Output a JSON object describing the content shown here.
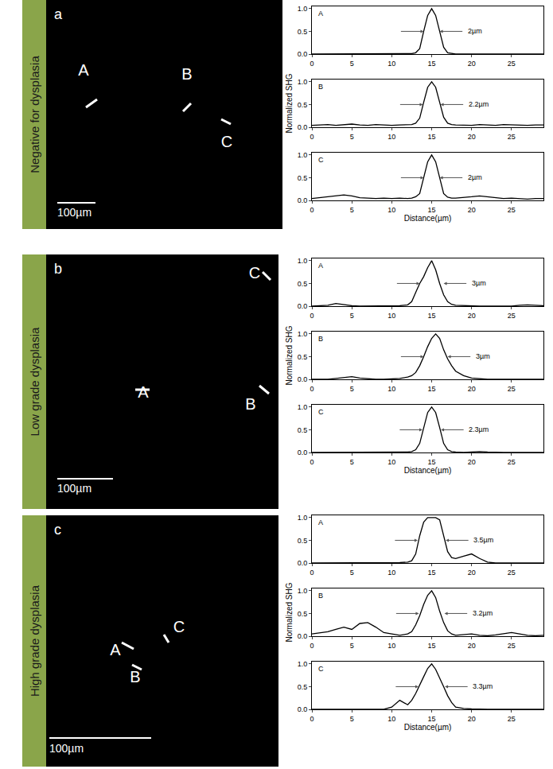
{
  "panels": [
    {
      "letter": "a",
      "label": "Negative for dysplasia",
      "scale_bar": "100µm",
      "markers": [
        "A",
        "B",
        "C"
      ]
    },
    {
      "letter": "b",
      "label": "Low grade dysplasia",
      "scale_bar": "100µm",
      "markers": [
        "A",
        "B",
        "C"
      ]
    },
    {
      "letter": "c",
      "label": "High grade dysplasia",
      "scale_bar": "100µm",
      "markers": [
        "A",
        "B",
        "C"
      ]
    }
  ],
  "chart_data": [
    {
      "type": "line",
      "title": "A",
      "color": "#000000",
      "x": [
        0,
        1,
        2,
        3,
        4,
        5,
        6,
        7,
        8,
        9,
        10,
        11,
        12,
        12.5,
        13,
        13.5,
        14,
        14.5,
        15,
        15.5,
        16,
        16.5,
        17,
        17.5,
        18,
        19,
        20,
        21,
        22,
        23,
        24,
        25,
        26,
        27,
        28,
        29
      ],
      "values": [
        0,
        0,
        0,
        0,
        0,
        0,
        0,
        0,
        0,
        0,
        0,
        0,
        0,
        0.01,
        0.03,
        0.12,
        0.5,
        0.85,
        1,
        0.85,
        0.5,
        0.15,
        0.03,
        0.01,
        0,
        0,
        0,
        0,
        0,
        0,
        0,
        0,
        0,
        0,
        0,
        0
      ],
      "xlim": [
        0,
        29
      ],
      "xticks": [
        0,
        5,
        10,
        15,
        20,
        25
      ],
      "ylim": [
        0,
        1.05
      ],
      "yticks": [
        {
          "value": 0,
          "label": "0.0"
        },
        {
          "value": 0.5,
          "label": "0.5"
        },
        {
          "value": 1,
          "label": "1.0"
        }
      ],
      "annotation": {
        "text": "2µm",
        "arrows": [
          14,
          16
        ],
        "y": 0.5
      }
    },
    {
      "type": "line",
      "title": "B",
      "color": "#000000",
      "y_label": "Normalized SHG",
      "x": [
        0,
        1,
        2,
        3,
        4,
        5,
        6,
        7,
        8,
        9,
        10,
        11,
        12,
        12.5,
        13,
        13.5,
        14,
        14.5,
        15,
        15.5,
        16,
        16.5,
        17,
        17.5,
        18,
        19,
        20,
        21,
        22,
        23,
        24,
        25,
        26,
        27,
        28,
        29
      ],
      "values": [
        0.04,
        0.05,
        0.06,
        0.04,
        0.05,
        0.07,
        0.05,
        0.04,
        0.06,
        0.05,
        0.04,
        0.05,
        0.05,
        0.06,
        0.09,
        0.2,
        0.55,
        0.88,
        1,
        0.88,
        0.55,
        0.22,
        0.09,
        0.06,
        0.05,
        0.05,
        0.04,
        0.06,
        0.05,
        0.04,
        0.06,
        0.05,
        0.05,
        0.04,
        0.05,
        0.05
      ],
      "xlim": [
        0,
        29
      ],
      "xticks": [
        0,
        5,
        10,
        15,
        20,
        25
      ],
      "ylim": [
        0,
        1.05
      ],
      "yticks": [
        {
          "value": 0,
          "label": "0.0"
        },
        {
          "value": 0.5,
          "label": "0.5"
        },
        {
          "value": 1,
          "label": "1.0"
        }
      ],
      "annotation": {
        "text": "2.2µm",
        "arrows": [
          13.9,
          16.1
        ],
        "y": 0.5
      }
    },
    {
      "type": "line",
      "title": "C",
      "color": "#000000",
      "x_label": "Distance(µm)",
      "x": [
        0,
        1,
        2,
        3,
        4,
        5,
        6,
        7,
        8,
        9,
        10,
        11,
        12,
        12.5,
        13,
        13.5,
        14,
        14.5,
        15,
        15.5,
        16,
        16.5,
        17,
        17.5,
        18,
        19,
        20,
        21,
        22,
        23,
        24,
        25,
        26,
        27,
        28,
        29
      ],
      "values": [
        0.04,
        0.06,
        0.08,
        0.1,
        0.12,
        0.1,
        0.06,
        0.05,
        0.04,
        0.05,
        0.04,
        0.05,
        0.04,
        0.05,
        0.08,
        0.15,
        0.5,
        0.85,
        1,
        0.85,
        0.5,
        0.15,
        0.07,
        0.05,
        0.05,
        0.06,
        0.08,
        0.1,
        0.08,
        0.05,
        0.04,
        0.05,
        0.04,
        0.03,
        0.04,
        0.04
      ],
      "xlim": [
        0,
        29
      ],
      "xticks": [
        0,
        5,
        10,
        15,
        20,
        25
      ],
      "ylim": [
        0,
        1.05
      ],
      "yticks": [
        {
          "value": 0,
          "label": "0.0"
        },
        {
          "value": 0.5,
          "label": "0.5"
        },
        {
          "value": 1,
          "label": "1.0"
        }
      ],
      "annotation": {
        "text": "2µm",
        "arrows": [
          14,
          16
        ],
        "y": 0.5
      }
    },
    {
      "type": "line",
      "title": "A",
      "color": "#000000",
      "x": [
        0,
        1,
        2,
        3,
        4,
        5,
        6,
        7,
        8,
        9,
        10,
        11,
        12,
        12.5,
        13,
        13.5,
        14,
        14.5,
        15,
        15.5,
        16,
        16.5,
        17,
        17.5,
        18,
        19,
        20,
        21,
        22,
        23,
        24,
        25,
        26,
        27,
        28,
        29
      ],
      "values": [
        0,
        0.01,
        0.02,
        0.06,
        0.03,
        0.01,
        0,
        0,
        0,
        0,
        0,
        0.01,
        0.03,
        0.1,
        0.3,
        0.5,
        0.65,
        0.85,
        1,
        0.8,
        0.5,
        0.25,
        0.1,
        0.04,
        0.02,
        0.01,
        0,
        0,
        0,
        0,
        0,
        0,
        0.02,
        0.03,
        0.02,
        0.01
      ],
      "xlim": [
        0,
        29
      ],
      "xticks": [
        0,
        5,
        10,
        15,
        20,
        25
      ],
      "ylim": [
        0,
        1.05
      ],
      "yticks": [
        {
          "value": 0,
          "label": "0.0"
        },
        {
          "value": 0.5,
          "label": "0.5"
        },
        {
          "value": 1,
          "label": "1.0"
        }
      ],
      "annotation": {
        "text": "3µm",
        "arrows": [
          13.5,
          16.5
        ],
        "y": 0.5
      }
    },
    {
      "type": "line",
      "title": "B",
      "color": "#000000",
      "y_label": "Normalized SHG",
      "x": [
        0,
        1,
        2,
        3,
        4,
        5,
        6,
        7,
        8,
        9,
        10,
        11,
        12,
        12.5,
        13,
        13.5,
        14,
        14.5,
        15,
        15.5,
        16,
        16.5,
        17,
        17.5,
        18,
        19,
        20,
        21,
        22,
        23,
        24,
        25,
        26,
        27,
        28,
        29
      ],
      "values": [
        0,
        0,
        0,
        0.02,
        0.04,
        0.06,
        0.03,
        0.01,
        0,
        0,
        0.01,
        0.02,
        0.05,
        0.08,
        0.15,
        0.3,
        0.5,
        0.72,
        0.9,
        1,
        0.9,
        0.65,
        0.45,
        0.3,
        0.18,
        0.08,
        0.03,
        0.01,
        0,
        0,
        0,
        0,
        0.01,
        0,
        0,
        0
      ],
      "xlim": [
        0,
        29
      ],
      "xticks": [
        0,
        5,
        10,
        15,
        20,
        25
      ],
      "ylim": [
        0,
        1.05
      ],
      "yticks": [
        {
          "value": 0,
          "label": "0.0"
        },
        {
          "value": 0.5,
          "label": "0.5"
        },
        {
          "value": 1,
          "label": "1.0"
        }
      ],
      "annotation": {
        "text": "3µm",
        "arrows": [
          14,
          17
        ],
        "y": 0.5
      }
    },
    {
      "type": "line",
      "title": "C",
      "color": "#000000",
      "x_label": "Distance(µm)",
      "x": [
        0,
        1,
        2,
        3,
        4,
        5,
        6,
        7,
        8,
        9,
        10,
        11,
        12,
        12.5,
        13,
        13.5,
        14,
        14.5,
        15,
        15.5,
        16,
        16.5,
        17,
        17.5,
        18,
        19,
        20,
        21,
        22,
        23,
        24,
        25,
        26,
        27,
        28,
        29
      ],
      "values": [
        0,
        0,
        0,
        0,
        0.01,
        0,
        0,
        0,
        0,
        0,
        0,
        0,
        0.01,
        0.02,
        0.06,
        0.2,
        0.55,
        0.88,
        1,
        0.88,
        0.55,
        0.2,
        0.06,
        0.02,
        0.01,
        0,
        0.01,
        0.02,
        0.01,
        0,
        0,
        0,
        0,
        0,
        0,
        0
      ],
      "xlim": [
        0,
        29
      ],
      "xticks": [
        0,
        5,
        10,
        15,
        20,
        25
      ],
      "ylim": [
        0,
        1.05
      ],
      "yticks": [
        {
          "value": 0,
          "label": "0.0"
        },
        {
          "value": 0.5,
          "label": "0.5"
        },
        {
          "value": 1,
          "label": "1.0"
        }
      ],
      "annotation": {
        "text": "2.3µm",
        "arrows": [
          13.85,
          16.15
        ],
        "y": 0.5
      }
    },
    {
      "type": "line",
      "title": "A",
      "color": "#000000",
      "x": [
        0,
        1,
        2,
        3,
        4,
        5,
        6,
        7,
        8,
        9,
        10,
        11,
        12,
        12.5,
        13,
        13.5,
        14,
        14.5,
        15,
        15.5,
        16,
        16.5,
        17,
        17.5,
        18,
        19,
        20,
        21,
        22,
        23,
        24,
        25,
        26,
        27,
        28,
        29
      ],
      "values": [
        0,
        0,
        0,
        0,
        0,
        0,
        0,
        0,
        0,
        0,
        0,
        0.01,
        0.02,
        0.05,
        0.2,
        0.6,
        0.9,
        1,
        1,
        1,
        0.95,
        0.6,
        0.25,
        0.12,
        0.1,
        0.15,
        0.2,
        0.1,
        0.02,
        0,
        0,
        0,
        0,
        0,
        0,
        0
      ],
      "xlim": [
        0,
        29
      ],
      "xticks": [
        0,
        5,
        10,
        15,
        20,
        25
      ],
      "ylim": [
        0,
        1.05
      ],
      "yticks": [
        {
          "value": 0,
          "label": "0.0"
        },
        {
          "value": 0.5,
          "label": "0.5"
        },
        {
          "value": 1,
          "label": "1.0"
        }
      ],
      "annotation": {
        "text": "3.5µm",
        "arrows": [
          13.25,
          16.75
        ],
        "y": 0.5
      }
    },
    {
      "type": "line",
      "title": "B",
      "color": "#000000",
      "y_label": "Normalized SHG",
      "x": [
        0,
        1,
        2,
        3,
        4,
        5,
        6,
        7,
        8,
        9,
        10,
        11,
        12,
        12.5,
        13,
        13.5,
        14,
        14.5,
        15,
        15.5,
        16,
        16.5,
        17,
        17.5,
        18,
        19,
        20,
        21,
        22,
        23,
        24,
        25,
        26,
        27,
        28,
        29
      ],
      "values": [
        0.05,
        0.07,
        0.1,
        0.15,
        0.2,
        0.15,
        0.28,
        0.3,
        0.2,
        0.08,
        0.05,
        0.02,
        0.05,
        0.1,
        0.25,
        0.45,
        0.7,
        0.9,
        1,
        0.85,
        0.55,
        0.3,
        0.12,
        0.05,
        0.02,
        0.03,
        0.05,
        0.02,
        0.01,
        0.03,
        0.05,
        0.08,
        0.05,
        0.02,
        0.01,
        0.02
      ],
      "xlim": [
        0,
        29
      ],
      "xticks": [
        0,
        5,
        10,
        15,
        20,
        25
      ],
      "ylim": [
        0,
        1.05
      ],
      "yticks": [
        {
          "value": 0,
          "label": "0.0"
        },
        {
          "value": 0.5,
          "label": "0.5"
        },
        {
          "value": 1,
          "label": "1.0"
        }
      ],
      "annotation": {
        "text": "3.2µm",
        "arrows": [
          13.4,
          16.6
        ],
        "y": 0.5
      }
    },
    {
      "type": "line",
      "title": "C",
      "color": "#000000",
      "x_label": "Distance(µm)",
      "x": [
        0,
        1,
        2,
        3,
        4,
        5,
        6,
        7,
        8,
        9,
        10,
        11,
        12,
        12.5,
        13,
        13.5,
        14,
        14.5,
        15,
        15.5,
        16,
        16.5,
        17,
        17.5,
        18,
        19,
        20,
        21,
        22,
        23,
        24,
        25,
        26,
        27,
        28,
        29
      ],
      "values": [
        0,
        0,
        0,
        0,
        0,
        0,
        0,
        0,
        0,
        0,
        0.05,
        0.2,
        0.1,
        0.2,
        0.35,
        0.55,
        0.72,
        0.9,
        1,
        0.88,
        0.7,
        0.5,
        0.3,
        0.15,
        0.05,
        0.02,
        0.01,
        0,
        0,
        0,
        0,
        0,
        0,
        0,
        0,
        0
      ],
      "xlim": [
        0,
        29
      ],
      "xticks": [
        0,
        5,
        10,
        15,
        20,
        25
      ],
      "ylim": [
        0,
        1.05
      ],
      "yticks": [
        {
          "value": 0,
          "label": "0.0"
        },
        {
          "value": 0.5,
          "label": "0.5"
        },
        {
          "value": 1,
          "label": "1.0"
        }
      ],
      "annotation": {
        "text": "3.3µm",
        "arrows": [
          13.35,
          16.65
        ],
        "y": 0.5
      }
    }
  ]
}
